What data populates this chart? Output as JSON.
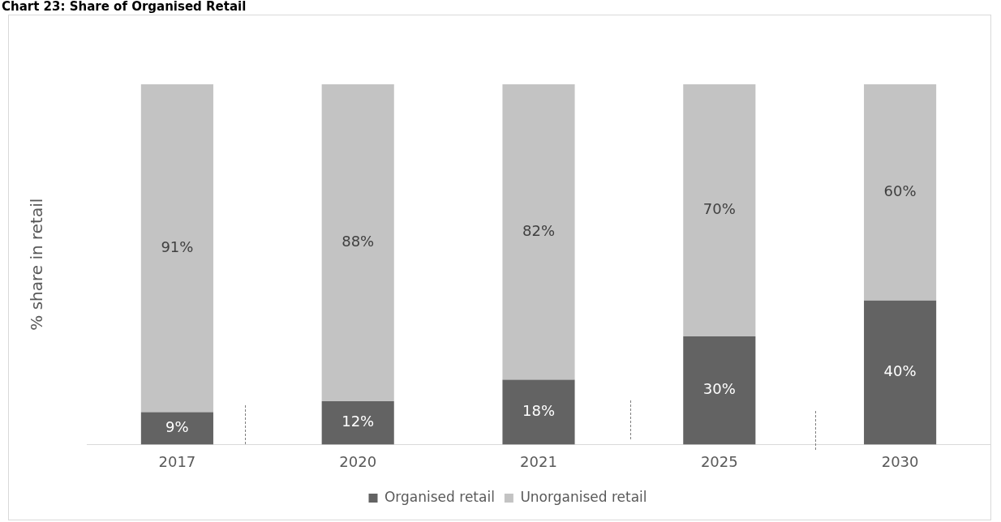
{
  "chart_data": {
    "type": "bar",
    "title": "Chart 23: Share of Organised Retail",
    "ylabel": "% share in retail",
    "categories": [
      "2017",
      "2020",
      "2021",
      "2025",
      "2030"
    ],
    "stacked": true,
    "legend": "bottom",
    "grid": false,
    "series": [
      {
        "name": "Organised retail",
        "color": "#636363",
        "values": [
          9,
          12,
          18,
          30,
          40
        ],
        "value_labels": [
          "9%",
          "12%",
          "18%",
          "30%",
          "40%"
        ]
      },
      {
        "name": "Unorganised retail",
        "color": "#c3c3c3",
        "values": [
          91,
          88,
          82,
          70,
          60
        ],
        "value_labels": [
          "91%",
          "88%",
          "82%",
          "70%",
          "60%"
        ]
      }
    ]
  }
}
